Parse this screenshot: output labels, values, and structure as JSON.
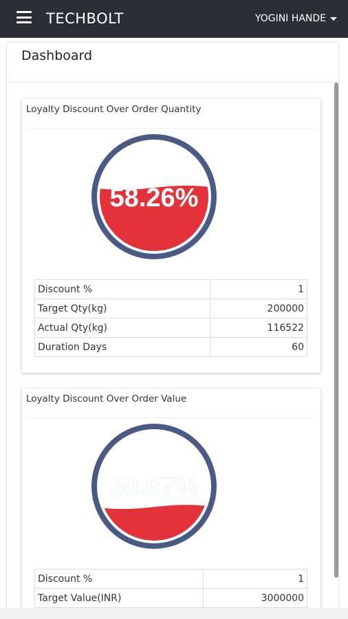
{
  "navbar": {
    "brand": "TECHBOLT",
    "user": "YOGINI HANDE"
  },
  "page": {
    "title": "Dashboard"
  },
  "cards": [
    {
      "title": "Loyalty Discount Over Order Quantity",
      "gauge": {
        "label": "58.26%",
        "percent": 58.26
      },
      "rows": [
        {
          "label": "Discount %",
          "value": "1"
        },
        {
          "label": "Target Qty(kg)",
          "value": "200000"
        },
        {
          "label": "Actual Qty(kg)",
          "value": "116522"
        },
        {
          "label": "Duration Days",
          "value": "60"
        }
      ]
    },
    {
      "title": "Loyalty Discount Over Order Value",
      "gauge": {
        "label": "30.97%",
        "percent": 30.97
      },
      "rows": [
        {
          "label": "Discount %",
          "value": "1"
        },
        {
          "label": "Target Value(INR)",
          "value": "3000000"
        }
      ]
    }
  ],
  "colors": {
    "navbar": "#2b2f33",
    "gauge_ring": "#4a5a85",
    "gauge_fill": "#e4323a",
    "gauge_text": "#1f4f7a"
  }
}
